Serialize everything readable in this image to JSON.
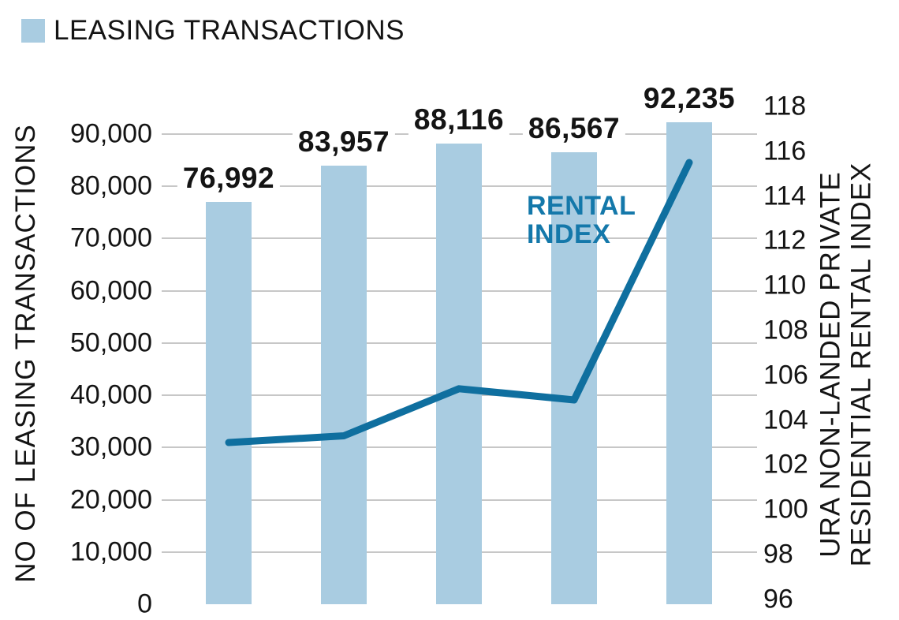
{
  "chart_data": {
    "type": "bar",
    "combo": "bar+line (dual axis)",
    "categories": [],
    "x_axis_labels_visible": false,
    "grid": true,
    "legend": {
      "label": "LEASING TRANSACTIONS",
      "position": "top-left",
      "swatch_color": "#a9cce1"
    },
    "series": [
      {
        "name": "LEASING TRANSACTIONS",
        "kind": "bar",
        "axis": "left",
        "color": "#a9cce1",
        "values": [
          76992,
          83957,
          88116,
          86567,
          92235
        ],
        "value_labels": [
          "76,992",
          "83,957",
          "88,116",
          "86,567",
          "92,235"
        ]
      },
      {
        "name": "RENTAL INDEX",
        "kind": "line",
        "axis": "right",
        "color": "#0f6f9f",
        "values": [
          103.0,
          103.3,
          105.4,
          104.9,
          115.5
        ]
      }
    ],
    "left_axis": {
      "label": "NO OF LEASING TRANSACTIONS",
      "range": [
        0,
        90000
      ],
      "ticks": [
        90000,
        80000,
        70000,
        60000,
        50000,
        40000,
        30000,
        20000,
        10000,
        0
      ],
      "tick_labels": [
        "90,000",
        "80,000",
        "70,000",
        "60,000",
        "50,000",
        "40,000",
        "30,000",
        "20,000",
        "10,000",
        "0"
      ]
    },
    "right_axis": {
      "label": "URA NON-LANDED PRIVATE RESIDENTIAL RENTAL INDEX",
      "label_lines": [
        "URA NON-LANDED PRIVATE",
        "RESIDENTIAL RENTAL INDEX"
      ],
      "range": [
        96,
        118
      ],
      "ticks": [
        118,
        116,
        114,
        112,
        110,
        108,
        106,
        104,
        102,
        100,
        98,
        96
      ],
      "tick_labels": [
        "118",
        "116",
        "114",
        "112",
        "110",
        "108",
        "106",
        "104",
        "102",
        "100",
        "98",
        "96"
      ]
    },
    "annotations": [
      {
        "text_lines": [
          "RENTAL",
          "INDEX"
        ],
        "color": "#1478aa"
      }
    ]
  },
  "colors": {
    "bar_fill": "#a9cce1",
    "line_stroke": "#0f6f9f",
    "annotation_text": "#1478aa",
    "gridline": "#c7c7c7",
    "text": "#141414",
    "background": "#ffffff"
  }
}
